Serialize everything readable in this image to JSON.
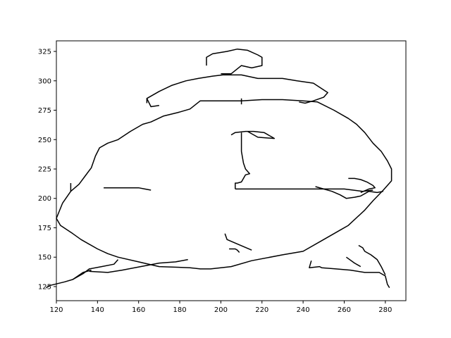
{
  "chart_data": {
    "type": "line",
    "title": "",
    "xlabel": "",
    "ylabel": "",
    "xlim": [
      120,
      290
    ],
    "ylim": [
      113,
      334
    ],
    "xticks": [
      120,
      140,
      160,
      180,
      200,
      220,
      240,
      260,
      280
    ],
    "yticks": [
      125,
      150,
      175,
      200,
      225,
      250,
      275,
      300,
      325
    ],
    "grid": false,
    "legend": "none",
    "line_color": "#000000",
    "series": [
      {
        "points": [
          [
            127,
            213
          ],
          [
            127,
            206
          ],
          [
            131,
            212
          ],
          [
            134,
            219
          ],
          [
            137,
            226
          ],
          [
            139,
            236
          ],
          [
            141,
            243
          ],
          [
            145,
            247
          ],
          [
            150,
            250
          ],
          [
            156,
            257
          ],
          [
            162,
            263
          ],
          [
            166,
            265
          ],
          [
            172,
            270
          ],
          [
            179,
            273
          ],
          [
            185,
            276
          ],
          [
            190,
            283
          ],
          [
            200,
            283
          ],
          [
            210,
            283
          ],
          [
            220,
            284
          ],
          [
            230,
            284
          ],
          [
            240,
            283
          ],
          [
            247,
            282
          ],
          [
            255,
            275
          ],
          [
            262,
            268
          ],
          [
            266,
            263
          ],
          [
            270,
            256
          ],
          [
            274,
            247
          ],
          [
            278,
            240
          ],
          [
            281,
            232
          ],
          [
            283,
            225
          ],
          [
            283,
            215
          ],
          [
            279,
            207
          ],
          [
            274,
            198
          ],
          [
            270,
            190
          ],
          [
            262,
            177
          ],
          [
            258,
            173
          ],
          [
            250,
            165
          ],
          [
            240,
            155
          ],
          [
            230,
            152
          ],
          [
            215,
            147
          ],
          [
            205,
            142
          ],
          [
            195,
            140
          ],
          [
            190,
            140
          ],
          [
            185,
            141
          ],
          [
            170,
            142
          ],
          [
            160,
            146
          ],
          [
            150,
            150
          ],
          [
            145,
            153
          ],
          [
            140,
            157
          ],
          [
            132,
            165
          ],
          [
            128,
            170
          ],
          [
            122,
            177
          ],
          [
            120,
            183
          ],
          [
            123,
            196
          ],
          [
            127,
            206
          ]
        ]
      },
      {
        "points": [
          [
            164,
            281
          ],
          [
            164,
            285
          ],
          [
            170,
            291
          ],
          [
            176,
            296
          ],
          [
            183,
            300
          ],
          [
            189,
            302
          ],
          [
            196,
            304
          ],
          [
            201,
            305
          ],
          [
            210,
            305
          ],
          [
            218,
            302
          ],
          [
            230,
            302
          ],
          [
            237,
            300
          ],
          [
            245,
            298
          ],
          [
            252,
            290
          ],
          [
            250,
            286
          ],
          [
            245,
            283
          ],
          [
            241,
            281
          ],
          [
            238,
            282
          ]
        ]
      },
      {
        "points": [
          [
            193,
            313
          ],
          [
            193,
            320
          ],
          [
            196,
            323
          ],
          [
            203,
            325
          ],
          [
            208,
            327
          ],
          [
            213,
            326
          ],
          [
            218,
            322
          ],
          [
            220,
            320
          ],
          [
            220,
            313
          ],
          [
            215,
            311
          ],
          [
            210,
            313
          ],
          [
            205,
            306
          ],
          [
            200,
            306
          ]
        ]
      },
      {
        "points": [
          [
            170,
            279
          ],
          [
            166,
            278
          ],
          [
            164,
            285
          ]
        ]
      },
      {
        "points": [
          [
            143,
            209
          ],
          [
            152,
            209
          ],
          [
            160,
            209
          ],
          [
            163,
            208
          ],
          [
            166,
            207
          ]
        ]
      },
      {
        "points": [
          [
            205,
            254
          ],
          [
            207,
            256
          ],
          [
            212,
            257
          ],
          [
            216,
            257
          ],
          [
            221,
            256
          ],
          [
            225,
            252
          ],
          [
            226,
            251
          ],
          [
            218,
            252
          ],
          [
            213,
            257
          ]
        ]
      },
      {
        "points": [
          [
            210,
            256
          ],
          [
            210,
            240
          ],
          [
            211,
            230
          ],
          [
            212,
            225
          ],
          [
            214,
            221
          ],
          [
            212,
            220
          ],
          [
            210,
            214
          ],
          [
            208,
            213
          ],
          [
            207,
            213
          ],
          [
            207,
            208
          ]
        ]
      },
      {
        "points": [
          [
            207,
            208
          ],
          [
            230,
            208
          ],
          [
            260,
            208
          ],
          [
            269,
            206
          ],
          [
            274,
            207
          ]
        ]
      },
      {
        "points": [
          [
            246,
            210
          ],
          [
            250,
            208
          ],
          [
            254,
            206
          ],
          [
            258,
            203
          ],
          [
            261,
            200
          ],
          [
            265,
            201
          ],
          [
            268,
            202
          ],
          [
            272,
            206
          ],
          [
            276,
            205
          ],
          [
            279,
            206
          ]
        ]
      },
      {
        "points": [
          [
            262,
            217
          ],
          [
            265,
            217
          ],
          [
            268,
            216
          ],
          [
            271,
            214
          ],
          [
            274,
            211
          ],
          [
            275,
            209
          ],
          [
            272,
            208
          ],
          [
            268,
            205
          ]
        ]
      },
      {
        "points": [
          [
            202,
            170
          ],
          [
            203,
            165
          ],
          [
            207,
            162
          ],
          [
            215,
            156
          ]
        ]
      },
      {
        "points": [
          [
            204,
            157
          ],
          [
            207,
            157
          ],
          [
            208,
            156
          ],
          [
            209,
            154
          ]
        ]
      },
      {
        "points": [
          [
            210,
            285
          ],
          [
            210,
            280
          ]
        ]
      },
      {
        "points": [
          [
            184,
            148
          ],
          [
            178,
            146
          ],
          [
            170,
            145
          ],
          [
            161,
            142
          ],
          [
            152,
            139
          ],
          [
            145,
            137
          ],
          [
            136,
            138
          ]
        ]
      },
      {
        "points": [
          [
            137,
            139
          ],
          [
            133,
            137
          ],
          [
            128,
            131
          ],
          [
            124,
            129
          ],
          [
            117,
            126
          ],
          [
            115,
            124
          ]
        ]
      },
      {
        "points": [
          [
            150,
            148
          ],
          [
            148,
            144
          ],
          [
            142,
            142
          ],
          [
            136,
            140
          ],
          [
            133,
            136
          ],
          [
            128,
            131
          ]
        ]
      },
      {
        "points": [
          [
            244,
            147
          ],
          [
            243,
            141
          ],
          [
            248,
            142
          ],
          [
            249,
            141
          ],
          [
            256,
            140
          ],
          [
            263,
            139
          ],
          [
            270,
            137
          ],
          [
            277,
            137
          ],
          [
            280,
            134
          ],
          [
            281,
            127
          ],
          [
            282,
            124
          ]
        ]
      },
      {
        "points": [
          [
            267,
            160
          ],
          [
            269,
            158
          ],
          [
            270,
            155
          ],
          [
            273,
            152
          ],
          [
            276,
            148
          ],
          [
            278,
            142
          ],
          [
            280,
            135
          ]
        ]
      },
      {
        "points": [
          [
            261,
            150
          ],
          [
            265,
            145
          ],
          [
            268,
            142
          ]
        ]
      }
    ]
  }
}
